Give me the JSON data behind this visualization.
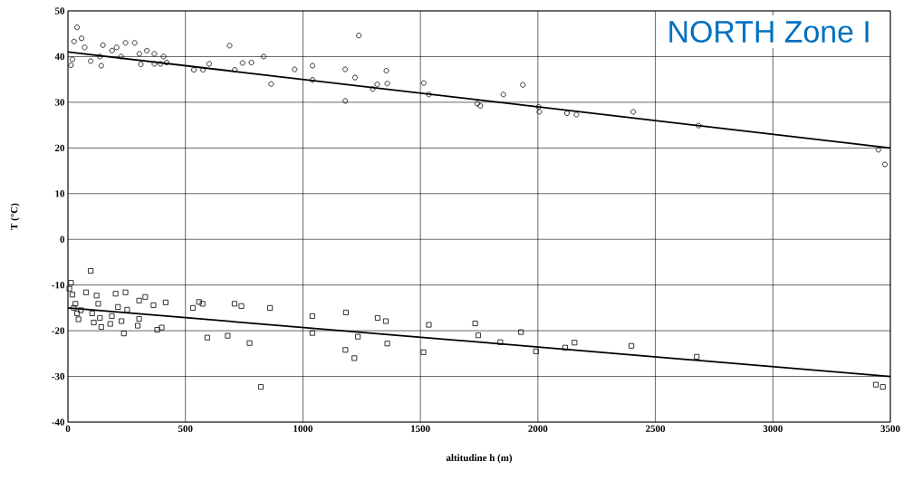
{
  "chart_data": {
    "type": "scatter",
    "title": "NORTH Zone I",
    "xlabel": "altitudine h (m)",
    "ylabel": "T (°C)",
    "xlim": [
      0,
      3500
    ],
    "ylim": [
      -40,
      50
    ],
    "xticks": [
      0,
      500,
      1000,
      1500,
      2000,
      2500,
      3000,
      3500
    ],
    "yticks": [
      -40,
      -30,
      -20,
      -10,
      0,
      10,
      20,
      30,
      40,
      50
    ],
    "grid": true,
    "series": [
      {
        "marker": "circle",
        "color": "#000000",
        "x": [
          13,
          19,
          26,
          39,
          58,
          71,
          97,
          136,
          142,
          149,
          188,
          207,
          226,
          245,
          284,
          304,
          310,
          336,
          368,
          368,
          394,
          407,
          420,
          536,
          575,
          601,
          688,
          710,
          743,
          781,
          833,
          865,
          965,
          1041,
          1041,
          1180,
          1180,
          1222,
          1238,
          1297,
          1316,
          1355,
          1359,
          1514,
          1536,
          1742,
          1755,
          1853,
          1936,
          2003,
          2006,
          2124,
          2164,
          2406,
          2684,
          3449,
          3477
        ],
        "values": [
          38.1,
          39.4,
          43.3,
          46.4,
          44,
          42,
          39,
          40,
          38,
          42.5,
          41.3,
          42,
          40,
          43,
          43,
          40.6,
          38.3,
          41.3,
          40.6,
          38.4,
          38.4,
          40,
          38.7,
          37.1,
          37.1,
          38.4,
          42.4,
          37.1,
          38.6,
          38.7,
          40,
          34,
          37.2,
          38,
          34.9,
          37.2,
          30.3,
          35.4,
          44.6,
          32.9,
          33.9,
          36.9,
          34.1,
          34.2,
          31.7,
          29.7,
          29.2,
          31.7,
          33.8,
          29,
          27.9,
          27.6,
          27.3,
          27.9,
          24.9,
          19.6,
          16.4
        ]
      },
      {
        "type": "line",
        "marker": "none",
        "color": "#000000",
        "x": [
          0,
          3500
        ],
        "values": [
          41,
          20
        ]
      },
      {
        "marker": "square",
        "color": "#000000",
        "x": [
          6,
          13,
          19,
          25,
          32,
          39,
          45,
          55,
          77,
          97,
          103,
          110,
          122,
          129,
          136,
          142,
          180,
          187,
          203,
          213,
          228,
          238,
          245,
          252,
          297,
          303,
          303,
          329,
          364,
          380,
          399,
          416,
          532,
          558,
          573,
          593,
          680,
          709,
          738,
          773,
          821,
          860,
          1040,
          1040,
          1181,
          1183,
          1219,
          1234,
          1318,
          1353,
          1359,
          1513,
          1536,
          1733,
          1746,
          1840,
          1928,
          1992,
          2116,
          2156,
          2398,
          2676,
          3438,
          3468
        ],
        "values": [
          -10.8,
          -9.5,
          -12.1,
          -15,
          -14.1,
          -16.2,
          -17.5,
          -15.5,
          -11.6,
          -6.9,
          -16.2,
          -18.2,
          -12.3,
          -14.1,
          -17.2,
          -19.2,
          -18.5,
          -16.8,
          -11.9,
          -14.8,
          -17.9,
          -20.6,
          -11.6,
          -15.4,
          -18.9,
          -13.4,
          -17.4,
          -12.6,
          -14.4,
          -19.8,
          -19.3,
          -13.8,
          -15,
          -13.7,
          -14.1,
          -21.5,
          -21.1,
          -14.1,
          -14.6,
          -22.7,
          -32.3,
          -15,
          -16.8,
          -20.5,
          -24.2,
          -16,
          -26,
          -21.3,
          -17.2,
          -17.9,
          -22.8,
          -24.7,
          -18.7,
          -18.4,
          -21,
          -22.5,
          -20.3,
          -24.5,
          -23.7,
          -22.6,
          -23.3,
          -25.7,
          -31.8,
          -32.3
        ]
      },
      {
        "type": "line",
        "marker": "none",
        "color": "#000000",
        "x": [
          0,
          3500
        ],
        "values": [
          -15,
          -30
        ]
      }
    ]
  }
}
